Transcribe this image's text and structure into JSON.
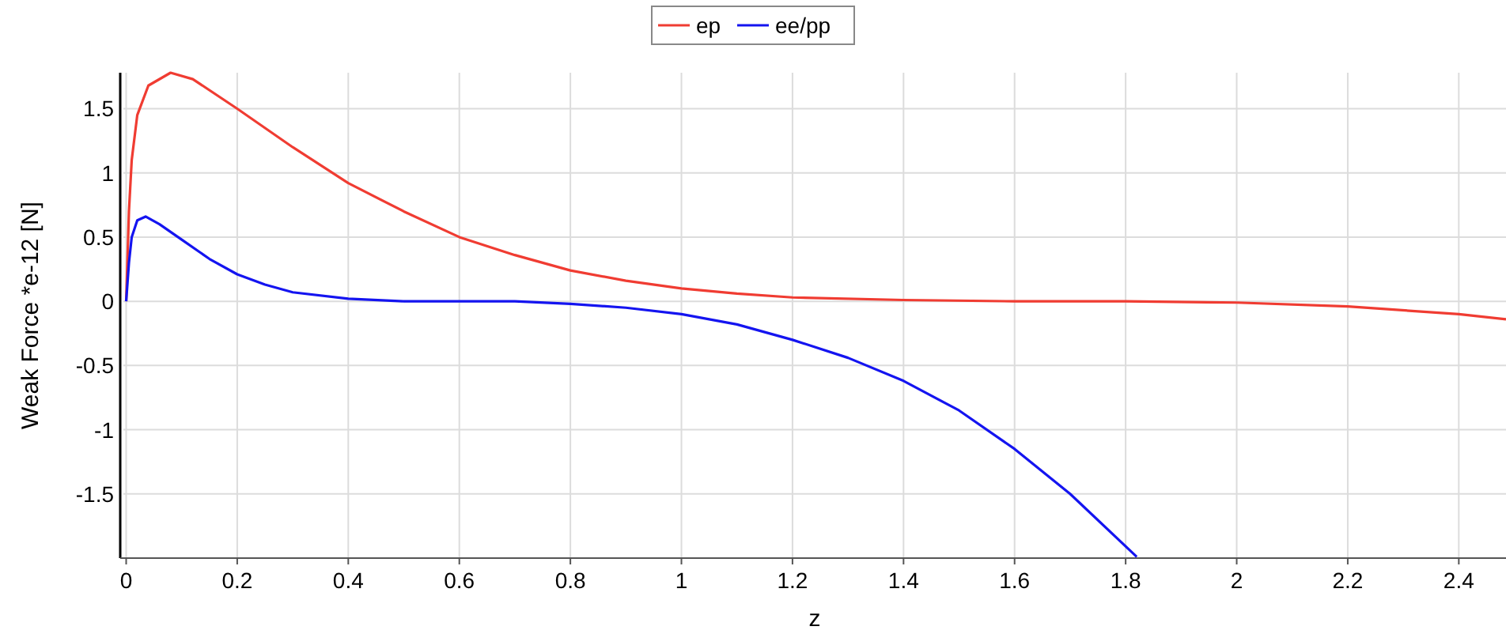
{
  "chart_data": {
    "type": "line",
    "xlabel": "z",
    "ylabel": "Weak Force *e-12 [N]",
    "xlim": [
      -0.005,
      2.485
    ],
    "ylim": [
      -2.0,
      1.78
    ],
    "xticks": [
      0,
      0.2,
      0.4,
      0.6,
      0.8,
      1,
      1.2,
      1.4,
      1.6,
      1.8,
      2,
      2.2,
      2.4
    ],
    "yticks": [
      -1.5,
      -1,
      -0.5,
      0,
      0.5,
      1,
      1.5
    ],
    "grid": true,
    "legend": "top",
    "marker": "none",
    "line_style": "solid",
    "series": [
      {
        "name": "ep",
        "color": "#f03c32",
        "x": [
          0,
          0.005,
          0.01,
          0.02,
          0.04,
          0.08,
          0.12,
          0.2,
          0.3,
          0.4,
          0.5,
          0.6,
          0.7,
          0.8,
          0.9,
          1.0,
          1.1,
          1.2,
          1.4,
          1.6,
          1.8,
          2.0,
          2.2,
          2.4,
          2.485
        ],
        "values": [
          0,
          0.7,
          1.1,
          1.45,
          1.68,
          1.78,
          1.73,
          1.5,
          1.2,
          0.92,
          0.7,
          0.5,
          0.36,
          0.24,
          0.16,
          0.1,
          0.06,
          0.03,
          0.01,
          0,
          0,
          -0.01,
          -0.04,
          -0.1,
          -0.14
        ]
      },
      {
        "name": "ee/pp",
        "color": "#1414f0",
        "x": [
          0,
          0.005,
          0.01,
          0.02,
          0.035,
          0.06,
          0.1,
          0.15,
          0.2,
          0.25,
          0.3,
          0.4,
          0.5,
          0.7,
          0.8,
          0.9,
          1.0,
          1.1,
          1.2,
          1.3,
          1.4,
          1.5,
          1.6,
          1.7,
          1.82
        ],
        "values": [
          0,
          0.3,
          0.5,
          0.63,
          0.66,
          0.6,
          0.48,
          0.33,
          0.21,
          0.13,
          0.07,
          0.02,
          0,
          0,
          -0.02,
          -0.05,
          -0.1,
          -0.18,
          -0.3,
          -0.44,
          -0.62,
          -0.85,
          -1.15,
          -1.5,
          -1.99
        ]
      }
    ]
  }
}
